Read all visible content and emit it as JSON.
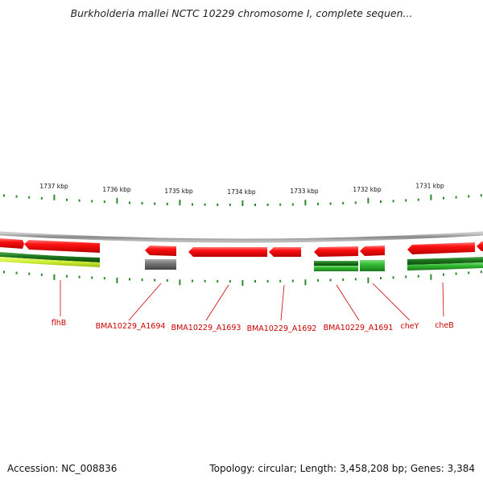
{
  "title": "Burkholderia mallei NCTC 10229 chromosome I, complete sequen...",
  "accession": "Accession: NC_008836",
  "summary": "Topology: circular; Length: 3,458,208 bp; Genes: 3,384",
  "scale_labels": [
    "1737 kbp",
    "1736 kbp",
    "1735 kbp",
    "1734 kbp",
    "1733 kbp",
    "1732 kbp",
    "1731 kbp"
  ],
  "gene_labels": [
    "flhB",
    "BMA10229_A1694",
    "BMA10229_A1693",
    "BMA10229_A1692",
    "BMA10229_A1691",
    "cheY",
    "cheB"
  ],
  "colors": {
    "forward_cds": "#ee1111",
    "gene_label": "#cc0000",
    "tick": "#2a8a2a",
    "backbone": "#999999",
    "grey_feature": "#777777",
    "green_feature": "#33bb33"
  }
}
